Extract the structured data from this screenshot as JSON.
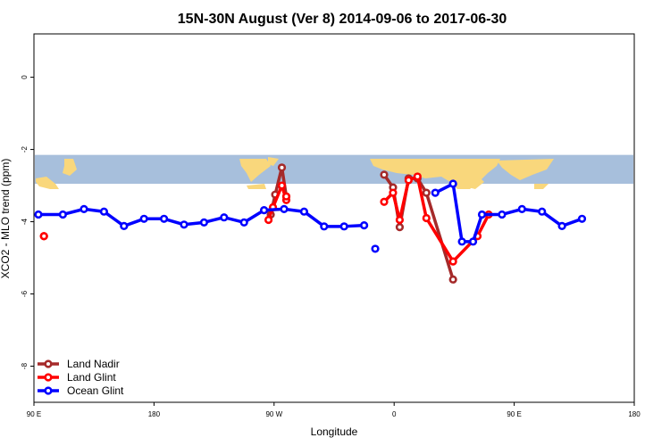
{
  "chart_data": {
    "type": "line",
    "title": "15N-30N August (Ver 8)   2014-09-06 to 2017-06-30",
    "xlabel": "Longitude",
    "ylabel": "XCO2 - MLO trend (ppm)",
    "xlim": [
      -90,
      180
    ],
    "ylim": [
      -9,
      1.2
    ],
    "x_ticks": [
      {
        "value": -90,
        "label": "90 E"
      },
      {
        "value": -36,
        "label": "180"
      },
      {
        "value": 18,
        "label": "90 W"
      },
      {
        "value": 72,
        "label": "0"
      },
      {
        "value": 126,
        "label": "90 E"
      },
      {
        "value": 180,
        "label": "180"
      }
    ],
    "y_ticks": [
      {
        "value": 0,
        "label": "0"
      },
      {
        "value": -2,
        "label": "-2"
      },
      {
        "value": -4,
        "label": "-4"
      },
      {
        "value": -6,
        "label": "-6"
      },
      {
        "value": -8,
        "label": "-8"
      }
    ],
    "map_band": {
      "y_top": -2.15,
      "y_bottom": -2.95,
      "ocean_color": "#a7bfdc",
      "land_color": "#f9d77c"
    },
    "legend_position": "bottom-left",
    "grid": false,
    "series": [
      {
        "name": "Land Nadir",
        "color": "#a52a2a",
        "segments": [
          [
            [
              16.5,
              -3.8
            ],
            [
              18.5,
              -3.25
            ],
            [
              21.5,
              -2.5
            ],
            [
              23.5,
              -3.3
            ]
          ],
          [
            [
              67.5,
              -2.7
            ],
            [
              71.5,
              -3.05
            ],
            [
              74.5,
              -4.15
            ],
            [
              78.5,
              -2.8
            ],
            [
              82.5,
              -2.8
            ],
            [
              86.5,
              -3.2
            ],
            [
              98.5,
              -5.6
            ]
          ]
        ]
      },
      {
        "name": "Land Glint",
        "color": "#ff0000",
        "segments": [
          [
            [
              -85.5,
              -4.4
            ],
            [
              -85.5,
              -4.4
            ]
          ],
          [
            [
              15.5,
              -3.95
            ],
            [
              17.5,
              -3.6
            ],
            [
              21.5,
              -3.0
            ],
            [
              23.5,
              -3.4
            ],
            [
              23.5,
              -3.3
            ]
          ],
          [
            [
              67.5,
              -3.45
            ],
            [
              71.5,
              -3.2
            ],
            [
              74.5,
              -3.95
            ],
            [
              78.5,
              -2.85
            ],
            [
              82.5,
              -2.75
            ],
            [
              86.5,
              -3.9
            ],
            [
              98.5,
              -5.1
            ],
            [
              109.5,
              -4.4
            ],
            [
              114.5,
              -3.8
            ]
          ]
        ]
      },
      {
        "name": "Ocean Glint",
        "color": "#0000ff",
        "segments": [
          [
            [
              -88,
              -3.8
            ],
            [
              -77,
              -3.8
            ],
            [
              -67.5,
              -3.65
            ],
            [
              -58.5,
              -3.72
            ],
            [
              -49.5,
              -4.12
            ],
            [
              -40.5,
              -3.92
            ],
            [
              -31.5,
              -3.92
            ],
            [
              -22.5,
              -4.08
            ],
            [
              -13.5,
              -4.02
            ],
            [
              -4.5,
              -3.88
            ],
            [
              4.5,
              -4.02
            ],
            [
              13.5,
              -3.68
            ],
            [
              22.5,
              -3.65
            ],
            [
              31.5,
              -3.72
            ],
            [
              40.5,
              -4.13
            ],
            [
              49.5,
              -4.13
            ],
            [
              58.5,
              -4.1
            ]
          ],
          [
            [
              63.5,
              -4.75
            ]
          ],
          [
            [
              90.5,
              -3.2
            ],
            [
              98.5,
              -2.95
            ],
            [
              102.5,
              -4.55
            ],
            [
              107.5,
              -4.55
            ],
            [
              111.5,
              -3.8
            ],
            [
              120.5,
              -3.8
            ],
            [
              129.5,
              -3.65
            ],
            [
              138.5,
              -3.72
            ],
            [
              147.5,
              -4.12
            ],
            [
              156.5,
              -3.92
            ]
          ]
        ]
      }
    ]
  }
}
